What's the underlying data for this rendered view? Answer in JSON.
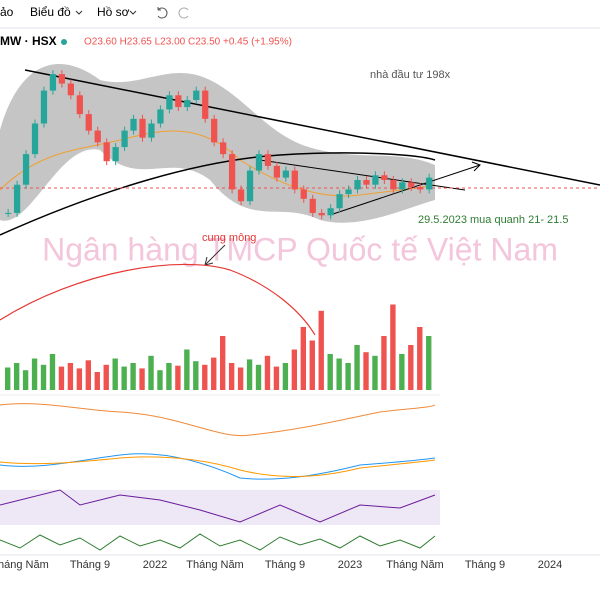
{
  "toolbar": {
    "item0": "ảo",
    "item1": "Biểu đồ",
    "item2": "Hồ sơ"
  },
  "legend": {
    "symbol": "MW · HSX",
    "ohlc": "O23.60 H23.65 L23.00 C23.50 +0.45 (+1.95%)"
  },
  "annotations": {
    "note1": "nhà đầu tư 198x",
    "note2": "29.5.2023 mua quanh 21- 21.5",
    "note3": "cung mông",
    "watermark": "Ngân hàng TMCP Quốc tế Việt Nam"
  },
  "x_axis_labels": [
    "Tháng Năm",
    "Tháng 9",
    "2022",
    "Tháng Năm",
    "Tháng 9",
    "2023",
    "Tháng Năm",
    "Tháng 9",
    "2024"
  ],
  "price": {
    "ylim": [
      20,
      28.5
    ],
    "closes": [
      22.0,
      23.2,
      24.5,
      25.8,
      27.2,
      27.9,
      27.5,
      27.0,
      26.2,
      25.5,
      25.0,
      24.2,
      24.8,
      25.5,
      26.0,
      25.2,
      25.8,
      26.4,
      27.0,
      26.5,
      26.8,
      27.2,
      26.0,
      25.0,
      24.5,
      23.0,
      22.5,
      23.8,
      24.5,
      24.0,
      23.5,
      23.8,
      23.0,
      22.6,
      22.0,
      21.9,
      22.2,
      22.8,
      23.0,
      23.4,
      23.2,
      23.6,
      23.4,
      23.0,
      23.3,
      23.1,
      23.0,
      23.5
    ]
  },
  "volume": {
    "ylim": [
      0,
      100
    ],
    "values": [
      25,
      30,
      22,
      35,
      28,
      40,
      26,
      30,
      24,
      33,
      20,
      28,
      35,
      26,
      30,
      24,
      38,
      22,
      30,
      27,
      45,
      32,
      28,
      36,
      60,
      30,
      25,
      34,
      28,
      38,
      26,
      30,
      45,
      70,
      55,
      88,
      40,
      35,
      30,
      50,
      42,
      38,
      60,
      95,
      40,
      50,
      70,
      60
    ]
  }
}
